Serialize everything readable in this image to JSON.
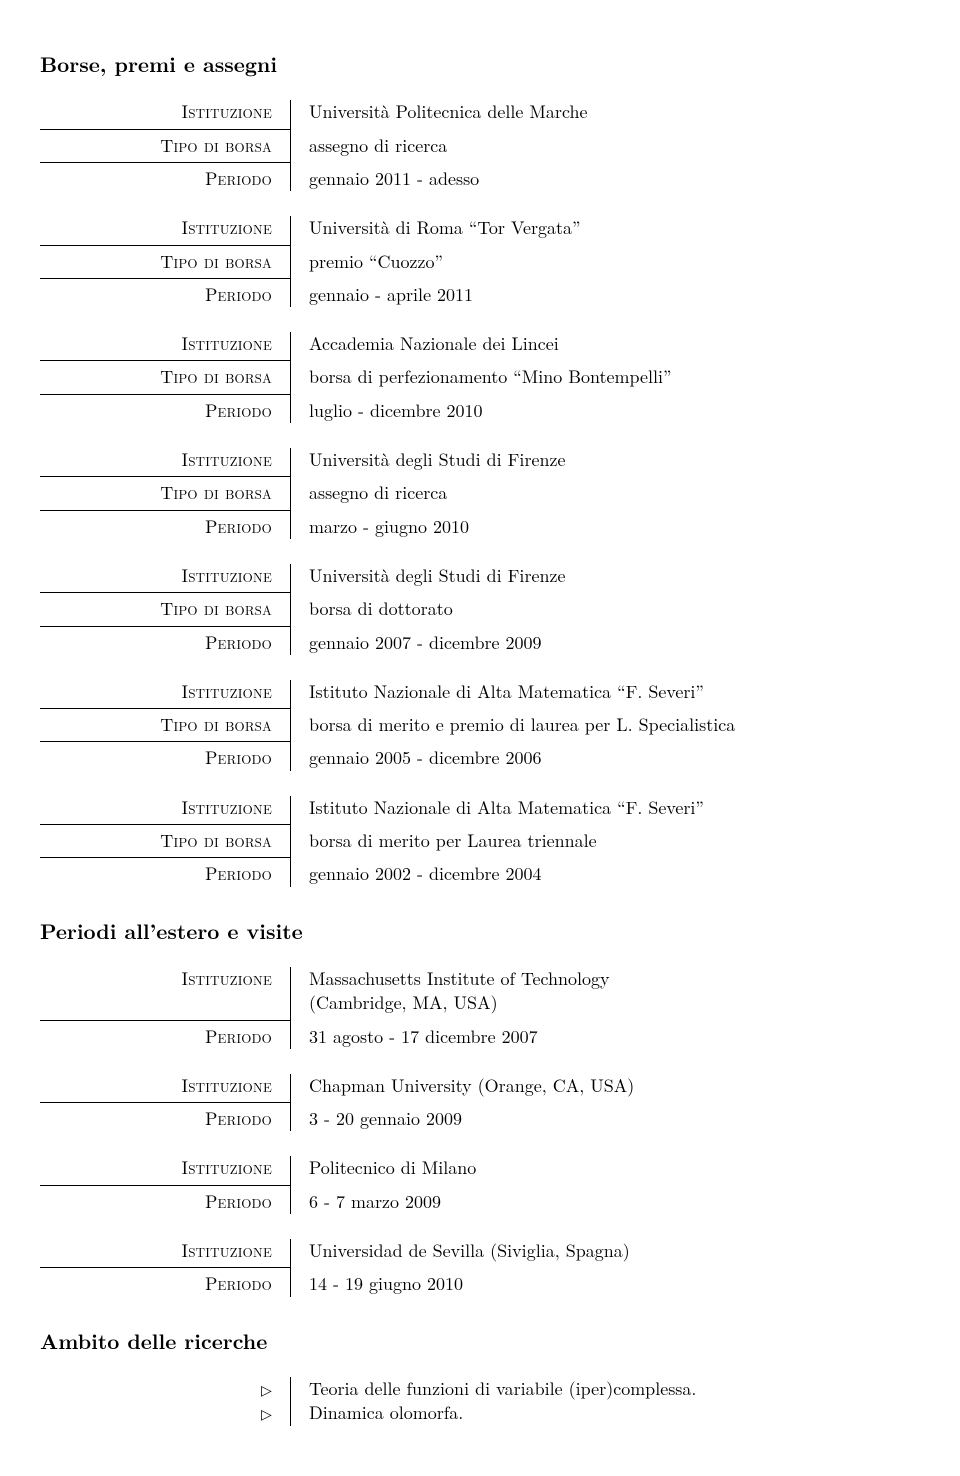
{
  "section1": {
    "title": "Borse, premi e assegni"
  },
  "labels": {
    "istituzione": "Istituzione",
    "tipo": "Tipo di borsa",
    "periodo": "Periodo"
  },
  "grants": [
    {
      "istituzione": "Università Politecnica delle Marche",
      "tipo": "assegno di ricerca",
      "periodo": "gennaio 2011 - adesso"
    },
    {
      "istituzione": "Università di Roma “Tor Vergata”",
      "tipo": "premio “Cuozzo”",
      "periodo": "gennaio - aprile 2011"
    },
    {
      "istituzione": "Accademia Nazionale dei Lincei",
      "tipo": "borsa di perfezionamento “Mino Bontempelli”",
      "periodo": "luglio - dicembre 2010"
    },
    {
      "istituzione": "Università degli Studi di Firenze",
      "tipo": "assegno di ricerca",
      "periodo": "marzo - giugno 2010"
    },
    {
      "istituzione": "Università degli Studi di Firenze",
      "tipo": "borsa di dottorato",
      "periodo": "gennaio 2007 - dicembre 2009"
    },
    {
      "istituzione": "Istituto Nazionale di Alta Matematica “F. Severi”",
      "tipo": "borsa di merito e premio di laurea per L. Specialistica",
      "periodo": "gennaio 2005 - dicembre 2006"
    },
    {
      "istituzione": "Istituto Nazionale di Alta Matematica “F. Severi”",
      "tipo": "borsa di merito per Laurea triennale",
      "periodo": "gennaio 2002 - dicembre 2004"
    }
  ],
  "section2": {
    "title": "Periodi all’estero e visite"
  },
  "visits": [
    {
      "istituzione": "Massachusetts Institute of Technology",
      "istituzione2": "(Cambridge, MA, USA)",
      "periodo": "31 agosto - 17 dicembre 2007"
    },
    {
      "istituzione": "Chapman University (Orange, CA, USA)",
      "periodo": "3 - 20 gennaio 2009"
    },
    {
      "istituzione": "Politecnico di Milano",
      "periodo": "6 - 7 marzo 2009"
    },
    {
      "istituzione": "Universidad de Sevilla (Siviglia, Spagna)",
      "periodo": "14 - 19 giugno 2010"
    }
  ],
  "section3": {
    "title": "Ambito delle ricerche"
  },
  "research": [
    "Teoria delle funzioni di variabile (iper)complessa.",
    "Dinamica olomorfa."
  ],
  "glyphs": {
    "triangle": "▷"
  }
}
